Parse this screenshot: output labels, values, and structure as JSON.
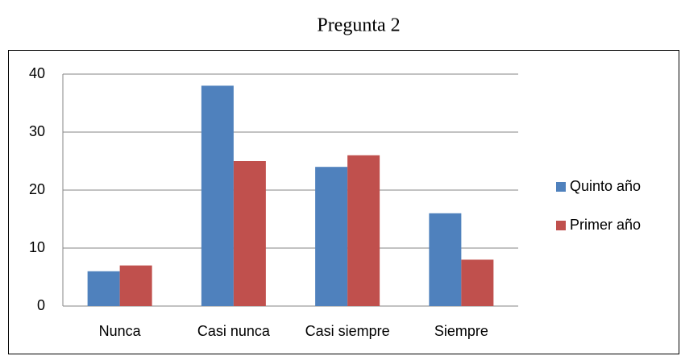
{
  "chart_data": {
    "type": "bar",
    "title": "Pregunta 2",
    "categories": [
      "Nunca",
      "Casi nunca",
      "Casi siempre",
      "Siempre"
    ],
    "series": [
      {
        "name": "Quinto año",
        "color": "#4f81bd",
        "values": [
          6,
          38,
          24,
          16
        ]
      },
      {
        "name": "Primer año",
        "color": "#c0504d",
        "values": [
          7,
          25,
          26,
          8
        ]
      }
    ],
    "ylim": [
      0,
      40
    ],
    "yticks": [
      0,
      10,
      20,
      30,
      40
    ],
    "grid": true,
    "legend": "right"
  }
}
